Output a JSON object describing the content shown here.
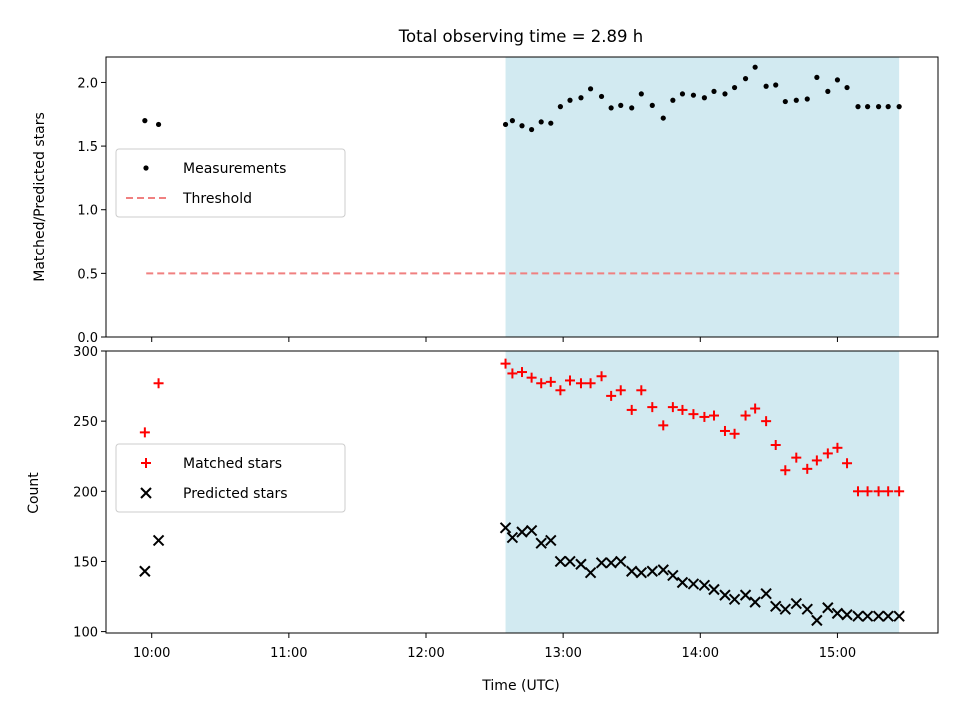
{
  "chart_data": {
    "title": "Total observing time = 2.89 h",
    "shared_x": {
      "label": "Time (UTC)",
      "unit": "hours UTC",
      "range": [
        9.6667,
        15.7333
      ],
      "ticks": [
        10,
        11,
        12,
        13,
        14,
        15
      ],
      "tick_labels": [
        "10:00",
        "11:00",
        "12:00",
        "13:00",
        "14:00",
        "15:00"
      ],
      "shaded_span": [
        12.58,
        15.45
      ],
      "shade_color": "#add8e6"
    },
    "panels": [
      {
        "type": "scatter",
        "ylabel": "Matched/Predicted stars",
        "ylim": [
          0,
          2.2
        ],
        "yticks": [
          0,
          0.5,
          1.0,
          1.5,
          2.0
        ],
        "ytick_labels": [
          "0.0",
          "0.5",
          "1.0",
          "1.5",
          "2.0"
        ],
        "legend_position": "center-left",
        "series": [
          {
            "name": "Measurements",
            "marker": "dot",
            "color": "#000000",
            "x": [
              9.95,
              10.05,
              12.58,
              12.63,
              12.7,
              12.77,
              12.84,
              12.91,
              12.98,
              13.05,
              13.13,
              13.2,
              13.28,
              13.35,
              13.42,
              13.5,
              13.57,
              13.65,
              13.73,
              13.8,
              13.87,
              13.95,
              14.03,
              14.1,
              14.18,
              14.25,
              14.33,
              14.4,
              14.48,
              14.55,
              14.62,
              14.7,
              14.78,
              14.85,
              14.93,
              15.0,
              15.07,
              15.15,
              15.22,
              15.3,
              15.37,
              15.45
            ],
            "y": [
              1.7,
              1.67,
              1.67,
              1.7,
              1.66,
              1.63,
              1.69,
              1.68,
              1.81,
              1.86,
              1.88,
              1.95,
              1.89,
              1.8,
              1.82,
              1.8,
              1.91,
              1.82,
              1.72,
              1.86,
              1.91,
              1.9,
              1.88,
              1.93,
              1.91,
              1.96,
              2.03,
              2.12,
              1.97,
              1.98,
              1.85,
              1.86,
              1.87,
              2.04,
              1.93,
              2.02,
              1.96,
              1.81,
              1.81,
              1.81,
              1.81,
              1.81
            ]
          },
          {
            "name": "Threshold",
            "marker": "dashed-line",
            "color": "#f08080",
            "x": [
              9.96,
              15.45
            ],
            "y": [
              0.5,
              0.5
            ]
          }
        ]
      },
      {
        "type": "scatter",
        "ylabel": "Count",
        "ylim": [
          99,
          300
        ],
        "yticks": [
          100,
          150,
          200,
          250,
          300
        ],
        "ytick_labels": [
          "100",
          "150",
          "200",
          "250",
          "300"
        ],
        "legend_position": "center-left",
        "series": [
          {
            "name": "Matched stars",
            "marker": "plus",
            "color": "#ff0000",
            "x": [
              9.95,
              10.05,
              12.58,
              12.63,
              12.7,
              12.77,
              12.84,
              12.91,
              12.98,
              13.05,
              13.13,
              13.2,
              13.28,
              13.35,
              13.42,
              13.5,
              13.57,
              13.65,
              13.73,
              13.8,
              13.87,
              13.95,
              14.03,
              14.1,
              14.18,
              14.25,
              14.33,
              14.4,
              14.48,
              14.55,
              14.62,
              14.7,
              14.78,
              14.85,
              14.93,
              15.0,
              15.07,
              15.15,
              15.22,
              15.3,
              15.37,
              15.45
            ],
            "y": [
              242,
              277,
              291,
              284,
              285,
              281,
              277,
              278,
              272,
              279,
              277,
              277,
              282,
              268,
              272,
              258,
              272,
              260,
              247,
              260,
              258,
              255,
              253,
              254,
              243,
              241,
              254,
              259,
              250,
              233,
              215,
              224,
              216,
              222,
              227,
              231,
              220,
              200,
              200,
              200,
              200,
              200
            ]
          },
          {
            "name": "Predicted stars",
            "marker": "x",
            "color": "#000000",
            "x": [
              9.95,
              10.05,
              12.58,
              12.63,
              12.7,
              12.77,
              12.84,
              12.91,
              12.98,
              13.05,
              13.13,
              13.2,
              13.28,
              13.35,
              13.42,
              13.5,
              13.57,
              13.65,
              13.73,
              13.8,
              13.87,
              13.95,
              14.03,
              14.1,
              14.18,
              14.25,
              14.33,
              14.4,
              14.48,
              14.55,
              14.62,
              14.7,
              14.78,
              14.85,
              14.93,
              15.0,
              15.07,
              15.15,
              15.22,
              15.3,
              15.37,
              15.45
            ],
            "y": [
              143,
              165,
              174,
              167,
              171,
              172,
              163,
              165,
              150,
              150,
              148,
              142,
              149,
              149,
              150,
              143,
              142,
              143,
              144,
              140,
              135,
              134,
              133,
              130,
              126,
              123,
              126,
              121,
              127,
              118,
              116,
              120,
              116,
              108,
              117,
              113,
              112,
              111,
              111,
              111,
              111,
              111
            ]
          }
        ]
      }
    ]
  }
}
